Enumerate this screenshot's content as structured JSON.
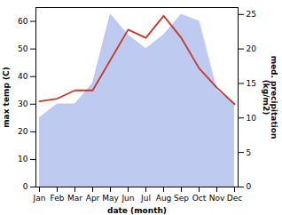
{
  "chart_data": {
    "type": "line",
    "xlabel": "date (month)",
    "ylabel": "max temp (C)",
    "y2label": "med. precipitation\n(kg/m2)",
    "categories": [
      "Jan",
      "Feb",
      "Mar",
      "Apr",
      "May",
      "Jun",
      "Jul",
      "Aug",
      "Sep",
      "Oct",
      "Nov",
      "Dec"
    ],
    "series": [
      {
        "type": "line",
        "color": "#c0392b",
        "values": [
          31,
          32,
          35,
          35,
          46,
          57,
          54,
          62,
          54,
          43,
          36,
          30
        ]
      },
      {
        "type": "area",
        "color": "#b8c4f0",
        "axis": "y2",
        "values": [
          10,
          12,
          12,
          15,
          25,
          22,
          20,
          22,
          25,
          24,
          14,
          12
        ]
      }
    ],
    "ylim": [
      0,
      65
    ],
    "yticks": [
      0,
      10,
      20,
      30,
      40,
      50,
      60
    ],
    "y2lim": [
      0,
      26
    ],
    "y2ticks": [
      0,
      5,
      10,
      15,
      20,
      25
    ],
    "grid": false
  }
}
